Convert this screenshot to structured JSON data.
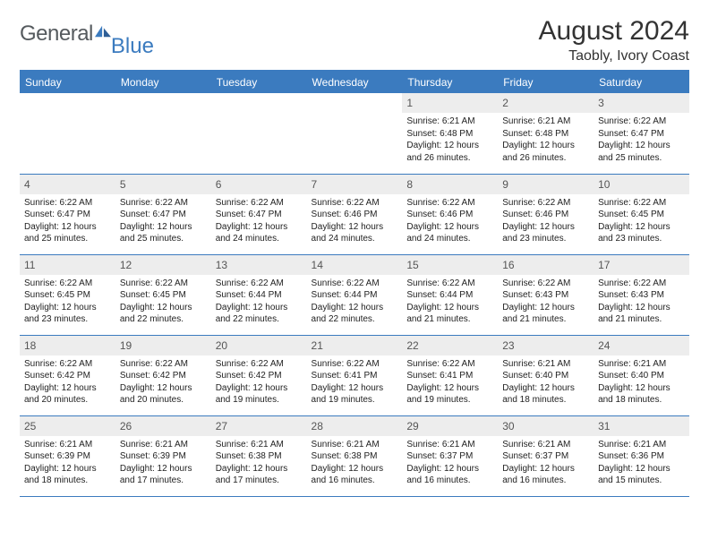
{
  "brand": {
    "word1": "General",
    "word2": "Blue"
  },
  "header": {
    "title": "August 2024",
    "location": "Taobly, Ivory Coast"
  },
  "colors": {
    "header_bg": "#3b7bbf",
    "daynum_bg": "#ededed",
    "border": "#3b7bbf",
    "text": "#222222",
    "logo_gray": "#555a5e"
  },
  "day_headers": [
    "Sunday",
    "Monday",
    "Tuesday",
    "Wednesday",
    "Thursday",
    "Friday",
    "Saturday"
  ],
  "weeks": [
    [
      null,
      null,
      null,
      null,
      {
        "n": "1",
        "sunrise": "6:21 AM",
        "sunset": "6:48 PM",
        "daylight": "12 hours and 26 minutes."
      },
      {
        "n": "2",
        "sunrise": "6:21 AM",
        "sunset": "6:48 PM",
        "daylight": "12 hours and 26 minutes."
      },
      {
        "n": "3",
        "sunrise": "6:22 AM",
        "sunset": "6:47 PM",
        "daylight": "12 hours and 25 minutes."
      }
    ],
    [
      {
        "n": "4",
        "sunrise": "6:22 AM",
        "sunset": "6:47 PM",
        "daylight": "12 hours and 25 minutes."
      },
      {
        "n": "5",
        "sunrise": "6:22 AM",
        "sunset": "6:47 PM",
        "daylight": "12 hours and 25 minutes."
      },
      {
        "n": "6",
        "sunrise": "6:22 AM",
        "sunset": "6:47 PM",
        "daylight": "12 hours and 24 minutes."
      },
      {
        "n": "7",
        "sunrise": "6:22 AM",
        "sunset": "6:46 PM",
        "daylight": "12 hours and 24 minutes."
      },
      {
        "n": "8",
        "sunrise": "6:22 AM",
        "sunset": "6:46 PM",
        "daylight": "12 hours and 24 minutes."
      },
      {
        "n": "9",
        "sunrise": "6:22 AM",
        "sunset": "6:46 PM",
        "daylight": "12 hours and 23 minutes."
      },
      {
        "n": "10",
        "sunrise": "6:22 AM",
        "sunset": "6:45 PM",
        "daylight": "12 hours and 23 minutes."
      }
    ],
    [
      {
        "n": "11",
        "sunrise": "6:22 AM",
        "sunset": "6:45 PM",
        "daylight": "12 hours and 23 minutes."
      },
      {
        "n": "12",
        "sunrise": "6:22 AM",
        "sunset": "6:45 PM",
        "daylight": "12 hours and 22 minutes."
      },
      {
        "n": "13",
        "sunrise": "6:22 AM",
        "sunset": "6:44 PM",
        "daylight": "12 hours and 22 minutes."
      },
      {
        "n": "14",
        "sunrise": "6:22 AM",
        "sunset": "6:44 PM",
        "daylight": "12 hours and 22 minutes."
      },
      {
        "n": "15",
        "sunrise": "6:22 AM",
        "sunset": "6:44 PM",
        "daylight": "12 hours and 21 minutes."
      },
      {
        "n": "16",
        "sunrise": "6:22 AM",
        "sunset": "6:43 PM",
        "daylight": "12 hours and 21 minutes."
      },
      {
        "n": "17",
        "sunrise": "6:22 AM",
        "sunset": "6:43 PM",
        "daylight": "12 hours and 21 minutes."
      }
    ],
    [
      {
        "n": "18",
        "sunrise": "6:22 AM",
        "sunset": "6:42 PM",
        "daylight": "12 hours and 20 minutes."
      },
      {
        "n": "19",
        "sunrise": "6:22 AM",
        "sunset": "6:42 PM",
        "daylight": "12 hours and 20 minutes."
      },
      {
        "n": "20",
        "sunrise": "6:22 AM",
        "sunset": "6:42 PM",
        "daylight": "12 hours and 19 minutes."
      },
      {
        "n": "21",
        "sunrise": "6:22 AM",
        "sunset": "6:41 PM",
        "daylight": "12 hours and 19 minutes."
      },
      {
        "n": "22",
        "sunrise": "6:22 AM",
        "sunset": "6:41 PM",
        "daylight": "12 hours and 19 minutes."
      },
      {
        "n": "23",
        "sunrise": "6:21 AM",
        "sunset": "6:40 PM",
        "daylight": "12 hours and 18 minutes."
      },
      {
        "n": "24",
        "sunrise": "6:21 AM",
        "sunset": "6:40 PM",
        "daylight": "12 hours and 18 minutes."
      }
    ],
    [
      {
        "n": "25",
        "sunrise": "6:21 AM",
        "sunset": "6:39 PM",
        "daylight": "12 hours and 18 minutes."
      },
      {
        "n": "26",
        "sunrise": "6:21 AM",
        "sunset": "6:39 PM",
        "daylight": "12 hours and 17 minutes."
      },
      {
        "n": "27",
        "sunrise": "6:21 AM",
        "sunset": "6:38 PM",
        "daylight": "12 hours and 17 minutes."
      },
      {
        "n": "28",
        "sunrise": "6:21 AM",
        "sunset": "6:38 PM",
        "daylight": "12 hours and 16 minutes."
      },
      {
        "n": "29",
        "sunrise": "6:21 AM",
        "sunset": "6:37 PM",
        "daylight": "12 hours and 16 minutes."
      },
      {
        "n": "30",
        "sunrise": "6:21 AM",
        "sunset": "6:37 PM",
        "daylight": "12 hours and 16 minutes."
      },
      {
        "n": "31",
        "sunrise": "6:21 AM",
        "sunset": "6:36 PM",
        "daylight": "12 hours and 15 minutes."
      }
    ]
  ],
  "labels": {
    "sunrise": "Sunrise:",
    "sunset": "Sunset:",
    "daylight": "Daylight:"
  }
}
